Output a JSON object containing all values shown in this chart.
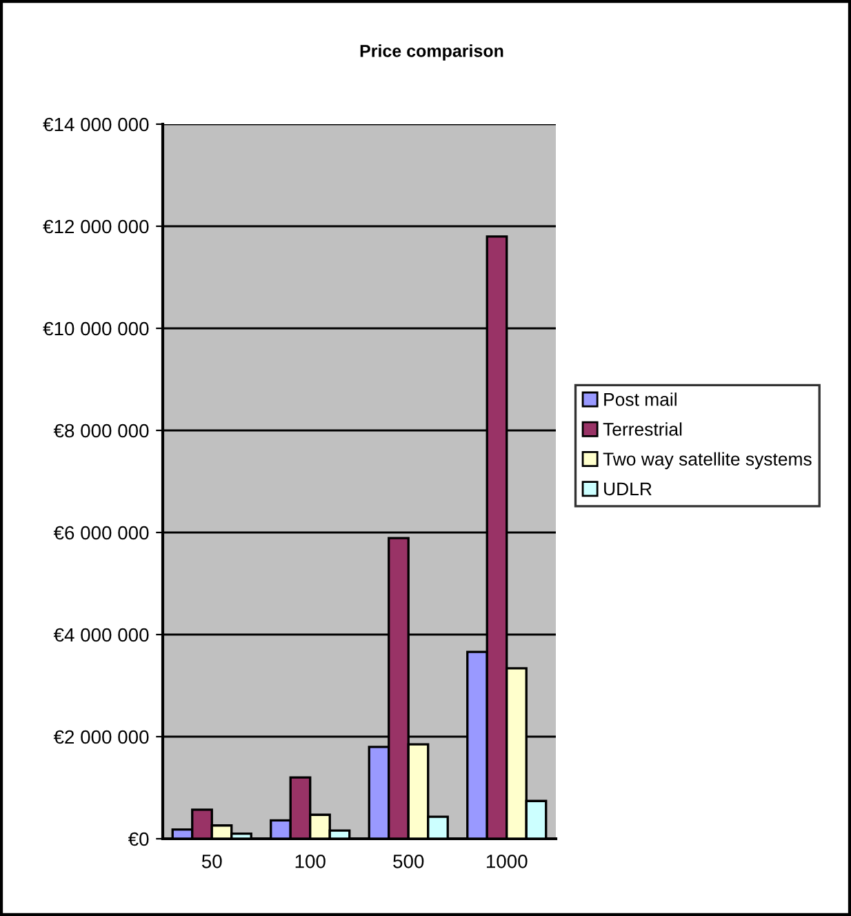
{
  "chart_data": {
    "type": "bar",
    "title": "Price comparison",
    "categories": [
      "50",
      "100",
      "500",
      "1000"
    ],
    "series": [
      {
        "name": "Post mail",
        "color": "#9999ff",
        "values": [
          180000,
          360000,
          1800000,
          3660000
        ]
      },
      {
        "name": "Terrestrial",
        "color": "#993366",
        "values": [
          570000,
          1200000,
          5890000,
          11800000
        ]
      },
      {
        "name": "Two way satellite systems",
        "color": "#ffffcc",
        "values": [
          260000,
          470000,
          1850000,
          3340000
        ]
      },
      {
        "name": "UDLR",
        "color": "#ccffff",
        "values": [
          100000,
          160000,
          430000,
          740000
        ]
      }
    ],
    "ylim": [
      0,
      14000000
    ],
    "yticks": [
      {
        "value": 0,
        "label": "€0"
      },
      {
        "value": 2000000,
        "label": "€2 000 000"
      },
      {
        "value": 4000000,
        "label": "€4 000 000"
      },
      {
        "value": 6000000,
        "label": "€6 000 000"
      },
      {
        "value": 8000000,
        "label": "€8 000 000"
      },
      {
        "value": 10000000,
        "label": "€10 000 000"
      },
      {
        "value": 12000000,
        "label": "€12 000 000"
      },
      {
        "value": 14000000,
        "label": "€14 000 000"
      }
    ],
    "grid": "y",
    "legend": "right"
  }
}
